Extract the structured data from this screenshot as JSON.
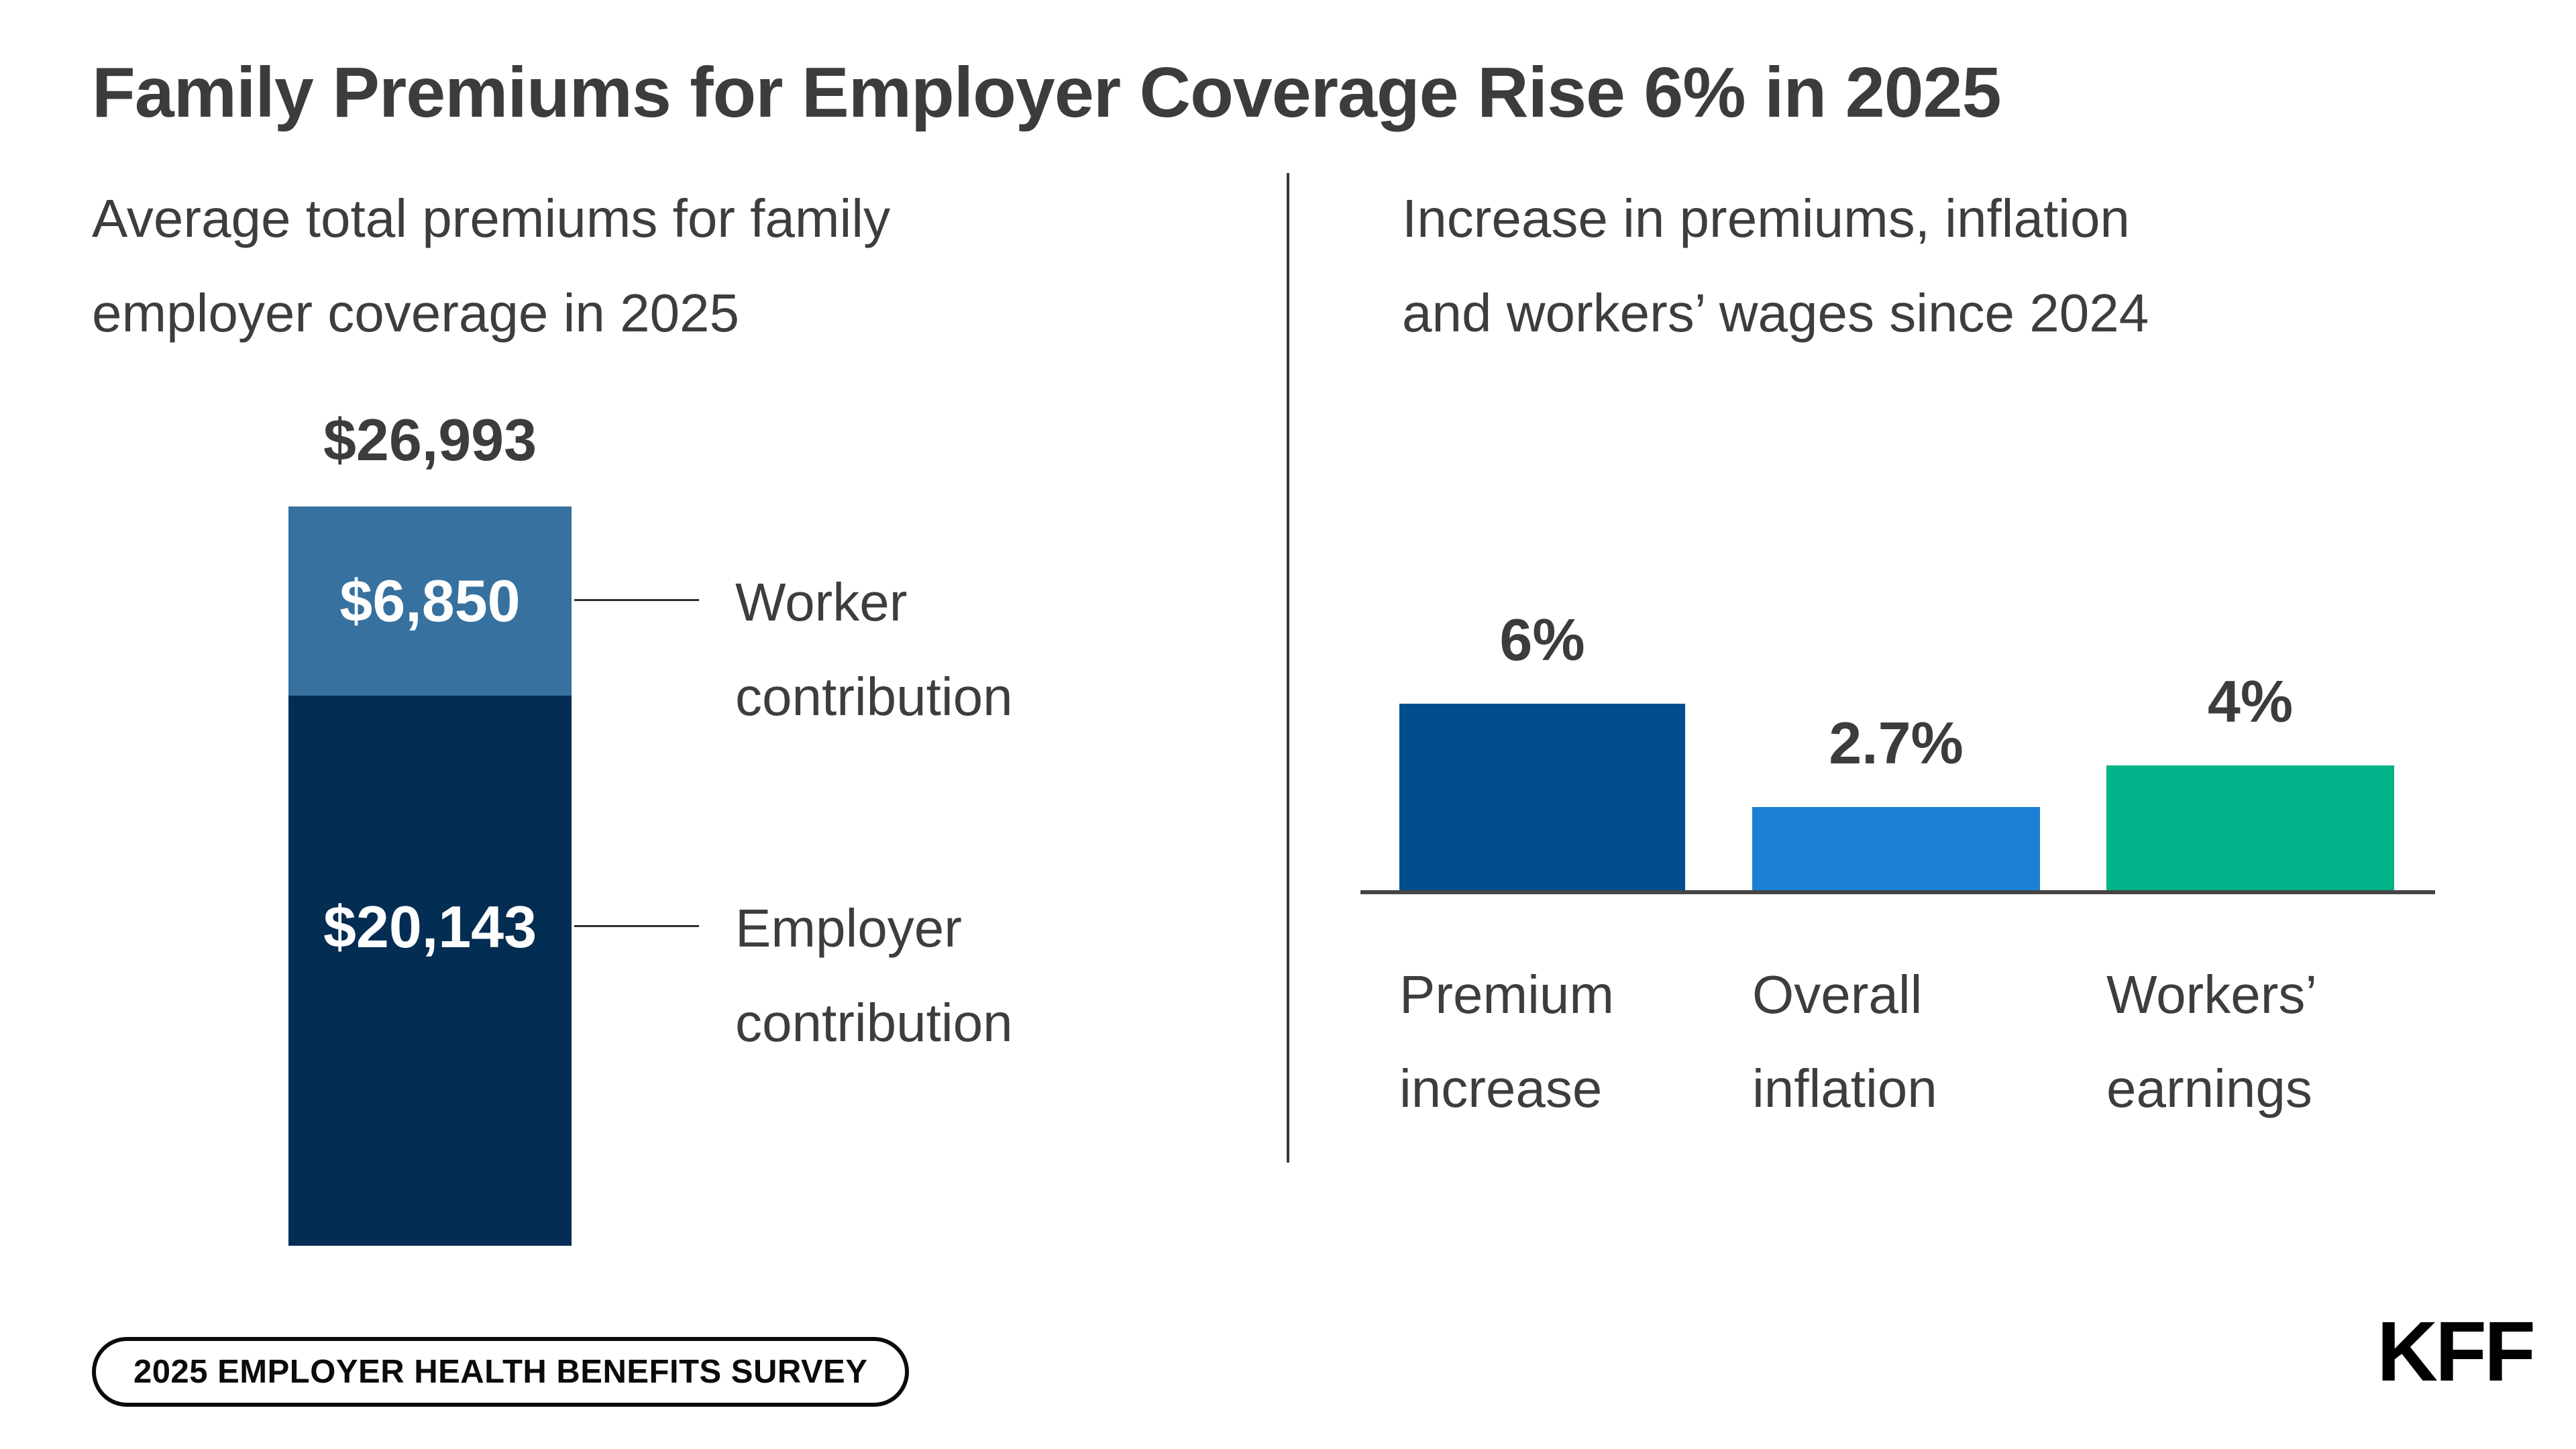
{
  "title": "Family Premiums for Employer Coverage Rise 6% in 2025",
  "colors": {
    "worker_blue": "#36719f",
    "employer_navy": "#032d52",
    "premium_increase_blue": "#014c8c",
    "overall_inflation_blue": "#1b80d4",
    "workers_earnings_green": "#00b388",
    "text_dark": "#3c3c3c",
    "axis_gray": "#454545"
  },
  "left_panel": {
    "subtitle_line1": "Average total premiums for family",
    "subtitle_line2": "employer coverage in 2025",
    "total_label": "$26,993",
    "worker_value": "$6,850",
    "worker_annotation_line1": "Worker",
    "worker_annotation_line2": "contribution",
    "employer_value": "$20,143",
    "employer_annotation_line1": "Employer",
    "employer_annotation_line2": "contribution"
  },
  "right_panel": {
    "subtitle_line1": "Increase in premiums, inflation",
    "subtitle_line2": "and workers’ wages since 2024",
    "bars": [
      {
        "value_label": "6%",
        "label_line1": "Premium",
        "label_line2": "increase"
      },
      {
        "value_label": "2.7%",
        "label_line1": "Overall",
        "label_line2": "inflation"
      },
      {
        "value_label": "4%",
        "label_line1": "Workers’",
        "label_line2": "earnings"
      }
    ]
  },
  "footer": {
    "badge_label": "2025 EMPLOYER HEALTH BENEFITS SURVEY",
    "logo_text": "KFF"
  },
  "chart_data": [
    {
      "type": "bar",
      "subtype": "stacked_single_column",
      "title": "Average total premiums for family employer coverage in 2025",
      "categories": [
        "Family employer coverage 2025"
      ],
      "series": [
        {
          "name": "Worker contribution",
          "values": [
            6850
          ],
          "color": "#36719f",
          "data_label": "$6,850"
        },
        {
          "name": "Employer contribution",
          "values": [
            20143
          ],
          "color": "#032d52",
          "data_label": "$20,143"
        }
      ],
      "total": 26993,
      "total_label": "$26,993",
      "unit": "USD",
      "grid": false,
      "legend_position": "right-leader-annotations"
    },
    {
      "type": "bar",
      "title": "Increase in premiums, inflation and workers’ wages since 2024",
      "categories": [
        "Premium increase",
        "Overall inflation",
        "Workers’ earnings"
      ],
      "values": [
        6,
        2.7,
        4
      ],
      "value_labels": [
        "6%",
        "2.7%",
        "4%"
      ],
      "colors": [
        "#014c8c",
        "#1b80d4",
        "#00b388"
      ],
      "unit": "percent",
      "ylim": [
        0,
        7
      ],
      "grid": false,
      "xlabel": "",
      "ylabel": ""
    }
  ]
}
